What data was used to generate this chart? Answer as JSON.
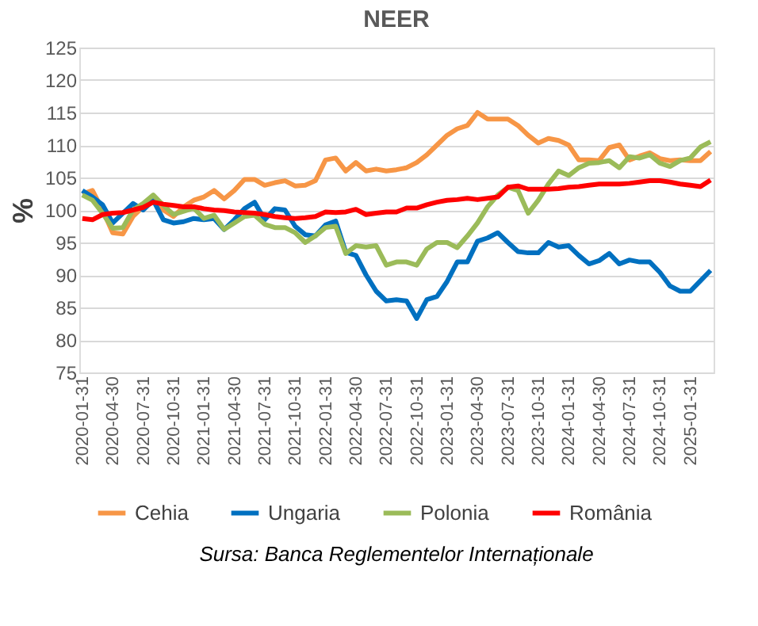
{
  "chart_data": {
    "type": "line",
    "title": "NEER",
    "ylabel": "%",
    "categories": [
      "2020-01-31",
      null,
      null,
      "2020-04-30",
      null,
      null,
      "2020-07-31",
      null,
      null,
      "2020-10-31",
      null,
      null,
      "2021-01-31",
      null,
      null,
      "2021-04-30",
      null,
      null,
      "2021-07-31",
      null,
      null,
      "2021-10-31",
      null,
      null,
      "2022-01-31",
      null,
      null,
      "2022-04-30",
      null,
      null,
      "2022-07-31",
      null,
      null,
      "2022-10-31",
      null,
      null,
      "2023-01-31",
      null,
      null,
      "2023-04-30",
      null,
      null,
      "2023-07-31",
      null,
      null,
      "2023-10-31",
      null,
      null,
      "2024-01-31",
      null,
      null,
      "2024-04-30",
      null,
      null,
      "2024-07-31",
      null,
      null,
      "2024-10-31",
      null,
      null,
      "2025-01-31",
      null,
      null
    ],
    "series": [
      {
        "name": "Cehia",
        "color": "#f79646",
        "values": [
          102.5,
          103,
          100,
          96.5,
          96.3,
          99,
          100.5,
          102,
          100,
          99,
          100.5,
          101.5,
          102,
          103,
          101.7,
          103,
          104.7,
          104.7,
          103.8,
          104.2,
          104.5,
          103.7,
          103.8,
          104.5,
          107.7,
          108,
          106,
          107.3,
          106,
          106.3,
          106,
          106.2,
          106.5,
          107.3,
          108.5,
          110,
          111.5,
          112.5,
          113,
          115,
          114,
          114,
          114,
          113,
          111.5,
          110.3,
          111,
          110.7,
          110,
          107.7,
          107.7,
          107.6,
          109.6,
          110,
          107.7,
          108.3,
          108.8,
          107.9,
          107.6,
          107.7,
          107.6,
          107.6,
          109
        ]
      },
      {
        "name": "Ungaria",
        "color": "#0070c0",
        "values": [
          103,
          102,
          100.8,
          98,
          99.5,
          101,
          100,
          101.5,
          98.5,
          98,
          98.2,
          98.7,
          98.5,
          98.7,
          97,
          98.5,
          100.2,
          101.2,
          98.5,
          100.2,
          100,
          97.5,
          96.2,
          96,
          97.7,
          98.3,
          93.5,
          93,
          90,
          87.5,
          86,
          86.2,
          86,
          83.3,
          86.2,
          86.7,
          89,
          92,
          92,
          95.2,
          95.7,
          96.5,
          95,
          93.6,
          93.4,
          93.4,
          95,
          94.3,
          94.5,
          93,
          91.7,
          92.2,
          93.3,
          91.7,
          92.3,
          92,
          92,
          90.4,
          88.3,
          87.5,
          87.5,
          89.1,
          90.7
        ]
      },
      {
        "name": "Polonia",
        "color": "#9bbb59",
        "values": [
          102.3,
          101.5,
          99.5,
          97.2,
          97.3,
          100,
          101,
          102.3,
          100.7,
          99.3,
          99.8,
          100.3,
          98.7,
          99.2,
          97,
          98,
          99,
          99.2,
          97.8,
          97.3,
          97.3,
          96.5,
          95,
          96,
          97.3,
          97.5,
          93.3,
          94.5,
          94.3,
          94.5,
          91.5,
          92,
          92,
          91.5,
          94,
          95,
          95,
          94.2,
          96,
          98,
          100.5,
          102.3,
          103.5,
          103,
          99.5,
          101.5,
          104,
          106,
          105.3,
          106.5,
          107.2,
          107.3,
          107.6,
          106.5,
          108.2,
          108,
          108.5,
          107.2,
          106.7,
          107.6,
          108,
          109.7,
          110.5
        ]
      },
      {
        "name": "România",
        "color": "#ff0000",
        "values": [
          98.7,
          98.5,
          99.3,
          99.5,
          99.6,
          100,
          100.4,
          101.2,
          100.9,
          100.7,
          100.5,
          100.5,
          100.2,
          100,
          99.9,
          99.7,
          99.6,
          99.5,
          99.3,
          99,
          98.8,
          98.7,
          98.8,
          99,
          99.7,
          99.6,
          99.7,
          100.1,
          99.3,
          99.5,
          99.7,
          99.7,
          100.3,
          100.3,
          100.8,
          101.2,
          101.5,
          101.6,
          101.8,
          101.6,
          101.8,
          102,
          103.5,
          103.7,
          103.2,
          103.2,
          103.2,
          103.3,
          103.5,
          103.6,
          103.8,
          104,
          104,
          104,
          104.1,
          104.3,
          104.5,
          104.5,
          104.3,
          104,
          103.8,
          103.6,
          104.6
        ]
      }
    ],
    "ylim": [
      75,
      125
    ],
    "yticks": [
      75,
      80,
      85,
      90,
      95,
      100,
      105,
      110,
      115,
      120,
      125
    ],
    "grid": "y",
    "legend": "bottom",
    "marker": "none",
    "line_style": "solid",
    "annotations": [
      "Sursa: Banca Reglementelor Internaționale"
    ]
  }
}
